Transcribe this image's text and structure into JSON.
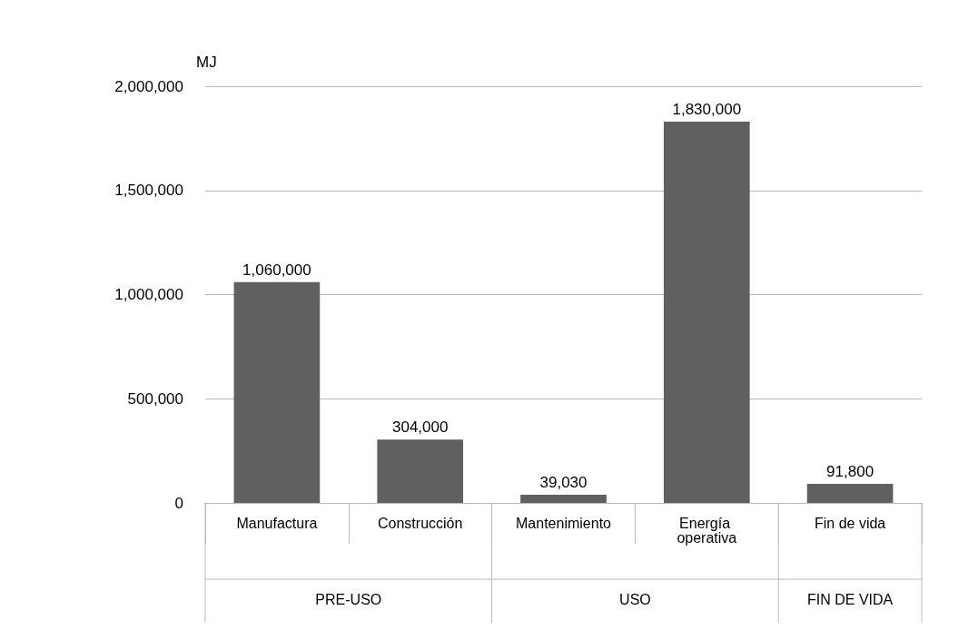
{
  "chart_data": {
    "type": "bar",
    "ylabel": "MJ",
    "categories": [
      "Manufactura",
      "Construcción",
      "Mantenimiento",
      "Energía operativa",
      "Fin de vida"
    ],
    "values": [
      1060000,
      304000,
      39030,
      1830000,
      91800
    ],
    "value_labels": [
      "1,060,000",
      "304,000",
      "39,030",
      "1,830,000",
      "91,800"
    ],
    "color": "#606060",
    "ylim": [
      0,
      2000000
    ],
    "yticks": [
      0,
      {
        "value": 500000,
        "label": "500,000"
      },
      {
        "value": 1000000,
        "label": "1,000,000"
      },
      {
        "value": 1500000,
        "label": "1,500,000"
      },
      {
        "value": 2000000,
        "label": "2,000,000"
      }
    ],
    "grid": "y",
    "legend": false,
    "annotations": [
      "PRE-USO",
      "USO",
      "FIN DE VIDA"
    ]
  }
}
